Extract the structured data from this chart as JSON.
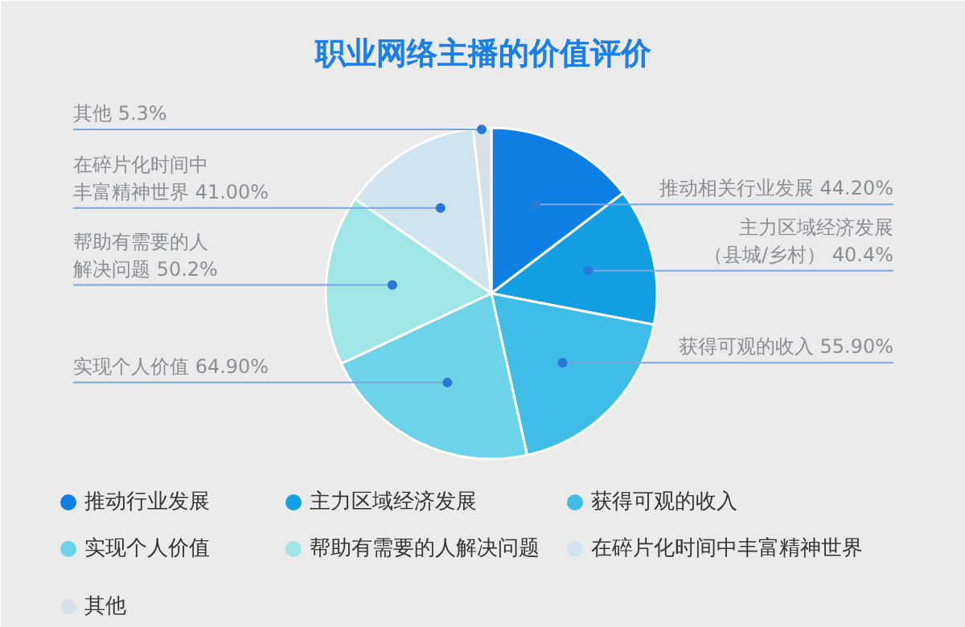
{
  "chart_data": {
    "type": "pie",
    "title": "职业网络主播的价值评价",
    "categories": [
      "推动行业发展",
      "主力区域经济发展",
      "获得可观的收入",
      "实现个人价值",
      "帮助有需要的人解决问题",
      "在碎片化时间中丰富精神世界",
      "其他"
    ],
    "values": [
      44.2,
      40.4,
      55.9,
      64.9,
      50.2,
      41.0,
      5.3
    ],
    "value_labels": [
      "推动相关行业发展 44.20%",
      "主力区域经济发展（县城/乡村） 40.4%",
      "获得可观的收入 55.90%",
      "实现个人价值 64.90%",
      "帮助有需要的人解决问题 50.2%",
      "在碎片化时间中丰富精神世界 41.00%",
      "其他 5.3%"
    ],
    "colors": [
      "#0f7fe3",
      "#12a0e2",
      "#3fbde6",
      "#6dd3e8",
      "#a0e6e6",
      "#cfe4ee",
      "#d6e0e8"
    ],
    "legend": "bottom"
  }
}
